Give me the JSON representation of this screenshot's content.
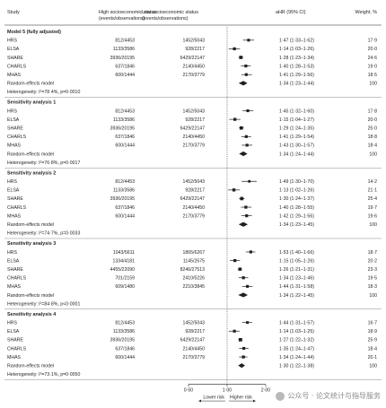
{
  "chart_data": {
    "type": "forest",
    "columns": {
      "study": "Study",
      "high": [
        "High socioeconomic status",
        "(events/observations)"
      ],
      "low": [
        "Low socioeconomic status",
        "(events/observations)"
      ],
      "ahr": "aHR (95% CI)",
      "weight": "Weight, %"
    },
    "x_axis": {
      "scale": "log",
      "ticks": [
        "0·50",
        "1·00",
        "2·00"
      ],
      "tick_values": [
        0.5,
        1.0,
        2.0
      ],
      "left_label": "Lower risk",
      "right_label": "Higher risk",
      "reference": 1.0
    },
    "sections": [
      {
        "title": "Model 5 (fully adjusted)",
        "rows": [
          {
            "study": "HRS",
            "high": "812/4453",
            "low": "1452/5043",
            "hr": 1.47,
            "lo": 1.33,
            "hi": 1.62,
            "ci": "1·47 (1·33–1·62)",
            "weight": "17·9"
          },
          {
            "study": "ELSA",
            "high": "1133/3586",
            "low": "928/2217",
            "hr": 1.14,
            "lo": 1.03,
            "hi": 1.26,
            "ci": "1·14 (1·03–1·26)",
            "weight": "20·0"
          },
          {
            "study": "SHARE",
            "high": "3936/20195",
            "low": "6429/22147",
            "hr": 1.28,
            "lo": 1.23,
            "hi": 1.34,
            "ci": "1·28 (1·23–1·34)",
            "weight": "24·6"
          },
          {
            "study": "CHARLS",
            "high": "637/1846",
            "low": "2140/4450",
            "hr": 1.4,
            "lo": 1.28,
            "hi": 1.53,
            "ci": "1·40 (1·28–1·53)",
            "weight": "19·0"
          },
          {
            "study": "MHAS",
            "high": "600/1444",
            "low": "2170/3779",
            "hr": 1.41,
            "lo": 1.29,
            "hi": 1.56,
            "ci": "1·41 (1·29–1·56)",
            "weight": "18·5"
          }
        ],
        "pooled": {
          "label": "Random-effects model",
          "hr": 1.34,
          "lo": 1.23,
          "hi": 1.44,
          "ci": "1·34 (1·23–1·44)",
          "weight": "100"
        },
        "heterogeneity": "Heterogeneity: I²=78·4%, p=0·0010"
      },
      {
        "title": "Sensitivity analysis 1",
        "rows": [
          {
            "study": "HRS",
            "high": "812/4453",
            "low": "1452/5043",
            "hr": 1.45,
            "lo": 1.32,
            "hi": 1.6,
            "ci": "1·45 (1·32–1·60)",
            "weight": "17·8"
          },
          {
            "study": "ELSA",
            "high": "1133/3586",
            "low": "928/2217",
            "hr": 1.15,
            "lo": 1.04,
            "hi": 1.27,
            "ci": "1·15 (1·04–1·27)",
            "weight": "20·0"
          },
          {
            "study": "SHARE",
            "high": "3936/20195",
            "low": "6429/22147",
            "hr": 1.29,
            "lo": 1.24,
            "hi": 1.35,
            "ci": "1·29 (1·24–1·35)",
            "weight": "25·0"
          },
          {
            "study": "CHARLS",
            "high": "637/1846",
            "low": "2140/4450",
            "hr": 1.41,
            "lo": 1.29,
            "hi": 1.54,
            "ci": "1·41 (1·29–1·54)",
            "weight": "18·8"
          },
          {
            "study": "MHAS",
            "high": "600/1444",
            "low": "2170/3779",
            "hr": 1.43,
            "lo": 1.3,
            "hi": 1.57,
            "ci": "1·43 (1·30–1·57)",
            "weight": "18·4"
          }
        ],
        "pooled": {
          "label": "Random-effects model",
          "hr": 1.34,
          "lo": 1.24,
          "hi": 1.44,
          "ci": "1·34 (1·24–1·44)",
          "weight": "100"
        },
        "heterogeneity": "Heterogeneity: I²=76·8%, p=0·0017"
      },
      {
        "title": "Sensitivity analysis 2",
        "rows": [
          {
            "study": "HRS",
            "high": "812/4453",
            "low": "1452/5043",
            "hr": 1.49,
            "lo": 1.3,
            "hi": 1.7,
            "ci": "1·49 (1·30–1·70)",
            "weight": "14·2"
          },
          {
            "study": "ELSA",
            "high": "1133/3586",
            "low": "928/2217",
            "hr": 1.13,
            "lo": 1.02,
            "hi": 1.26,
            "ci": "1·13 (1·02–1·26)",
            "weight": "21·1"
          },
          {
            "study": "SHARE",
            "high": "3936/20195",
            "low": "6429/22147",
            "hr": 1.3,
            "lo": 1.24,
            "hi": 1.37,
            "ci": "1·30 (1·24–1·37)",
            "weight": "25·4"
          },
          {
            "study": "CHARLS",
            "high": "637/1846",
            "low": "2140/4450",
            "hr": 1.4,
            "lo": 1.28,
            "hi": 1.55,
            "ci": "1·40 (1·28–1·55)",
            "weight": "19·7"
          },
          {
            "study": "MHAS",
            "high": "600/1444",
            "low": "2170/3779",
            "hr": 1.42,
            "lo": 1.29,
            "hi": 1.56,
            "ci": "1·42 (1·29–1·56)",
            "weight": "19·6"
          }
        ],
        "pooled": {
          "label": "Random-effects model",
          "hr": 1.34,
          "lo": 1.23,
          "hi": 1.45,
          "ci": "1·34 (1·23–1·45)",
          "weight": "100"
        },
        "heterogeneity": "Heterogeneity: I²=74·7%, p=0·0033"
      },
      {
        "title": "Sensitivity analysis 3",
        "rows": [
          {
            "study": "HRS",
            "high": "1043/5611",
            "low": "1865/6267",
            "hr": 1.53,
            "lo": 1.4,
            "hi": 1.66,
            "ci": "1·53 (1·40–1·66)",
            "weight": "18·7"
          },
          {
            "study": "ELSA",
            "high": "1334/4181",
            "low": "1145/2675",
            "hr": 1.15,
            "lo": 1.05,
            "hi": 1.26,
            "ci": "1·15 (1·05–1·26)",
            "weight": "20·2"
          },
          {
            "study": "SHARE",
            "high": "4455/22090",
            "low": "8246/27513",
            "hr": 1.26,
            "lo": 1.21,
            "hi": 1.31,
            "ci": "1·26 (1·21–1·31)",
            "weight": "23·3"
          },
          {
            "study": "CHARLS",
            "high": "701/2159",
            "low": "2410/5226",
            "hr": 1.34,
            "lo": 1.23,
            "hi": 1.46,
            "ci": "1·34 (1·23–1·46)",
            "weight": "19·5"
          },
          {
            "study": "MHAS",
            "high": "609/1480",
            "low": "2210/3845",
            "hr": 1.44,
            "lo": 1.31,
            "hi": 1.58,
            "ci": "1·44 (1·31–1·58)",
            "weight": "18·3"
          }
        ],
        "pooled": {
          "label": "Random-effects model",
          "hr": 1.34,
          "lo": 1.22,
          "hi": 1.45,
          "ci": "1·34 (1·22–1·45)",
          "weight": "100"
        },
        "heterogeneity": "Heterogeneity: I²=84·8%, p<0·0001"
      },
      {
        "title": "Sensitivity analysis 4",
        "rows": [
          {
            "study": "HRS",
            "high": "812/4453",
            "low": "1452/5043",
            "hr": 1.44,
            "lo": 1.31,
            "hi": 1.57,
            "ci": "1·44 (1·31–1·57)",
            "weight": "16·7"
          },
          {
            "study": "ELSA",
            "high": "1133/3586",
            "low": "928/2217",
            "hr": 1.14,
            "lo": 1.03,
            "hi": 1.25,
            "ci": "1·14 (1·03–1·25)",
            "weight": "18·9"
          },
          {
            "study": "SHARE",
            "high": "3936/20195",
            "low": "6429/22147",
            "hr": 1.27,
            "lo": 1.22,
            "hi": 1.32,
            "ci": "1·27 (1·22–1·32)",
            "weight": "25·9"
          },
          {
            "study": "CHARLS",
            "high": "637/1846",
            "low": "2140/4450",
            "hr": 1.35,
            "lo": 1.24,
            "hi": 1.47,
            "ci": "1·35 (1·24–1·47)",
            "weight": "18·4"
          },
          {
            "study": "MHAS",
            "high": "600/1444",
            "low": "2170/3779",
            "hr": 1.34,
            "lo": 1.24,
            "hi": 1.44,
            "ci": "1·34 (1·24–1·44)",
            "weight": "20·1"
          }
        ],
        "pooled": {
          "label": "Random-effects model",
          "hr": 1.3,
          "lo": 1.22,
          "hi": 1.38,
          "ci": "1·30 (1·22–1·38)",
          "weight": "100"
        },
        "heterogeneity": "Heterogeneity: I²=73·1%, p=0·0050"
      }
    ]
  },
  "watermark": {
    "text": "公众号 · 论文统计与指导服务"
  }
}
